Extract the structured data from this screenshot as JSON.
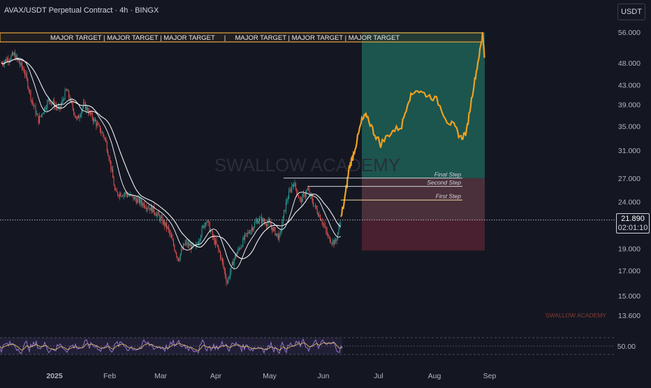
{
  "header": {
    "title": "AVAX/USDT Perpetual Contract · 4h · BINGX",
    "currency_button": "USDT"
  },
  "watermark": {
    "center": "SWALLOW ACADEMY",
    "corner": "SWALLOW ACADEMY"
  },
  "banner": {
    "text": "MAJOR TARGET | MAJOR TARGET | MAJOR TARGET     |     MAJOR TARGET | MAJOR TARGET | MAJOR TARGET"
  },
  "steps": [
    {
      "label": "Final Step",
      "price": 27.0
    },
    {
      "label": "Second Step",
      "price": 25.9
    },
    {
      "label": "First Step",
      "price": 24.2
    }
  ],
  "current_price": {
    "value": "21.890",
    "countdown": "02:01:10"
  },
  "price_axis": {
    "ticks": [
      "56.000",
      "48.000",
      "43.000",
      "39.000",
      "35.000",
      "31.000",
      "27.000",
      "24.000",
      "19.000",
      "17.000",
      "15.000",
      "13.600"
    ],
    "rsi_tick": "50.00"
  },
  "time_axis": {
    "labels": [
      "2025",
      "Feb",
      "Mar",
      "Apr",
      "May",
      "Jun",
      "Jul",
      "Aug",
      "Sep"
    ]
  },
  "colors": {
    "background": "#141722",
    "bull": "#26a69a",
    "bear": "#ef5350",
    "target_zone": "#1e6b5d",
    "stop_zone": "#5b2434",
    "projection": "#f0a020",
    "banner_border": "#e8a33a",
    "rsi": "#9575cd"
  },
  "chart_data": {
    "type": "line",
    "title": "AVAX/USDT Perpetual Contract · 4h · BINGX",
    "xlabel": "",
    "ylabel": "",
    "x": [
      "2025",
      "Feb",
      "Mar",
      "Apr",
      "May",
      "Jun",
      "Jul",
      "Aug",
      "Sep"
    ],
    "series": [
      {
        "name": "",
        "values": [
          40.0,
          35.0,
          25.0,
          18.5,
          21.5,
          20.0,
          35.0,
          40.0,
          54.0
        ]
      }
    ],
    "ylim": [
      13.6,
      56.0
    ],
    "target_zone": [
      21.9,
      56.0
    ],
    "stop_zone": [
      18.8,
      27.0
    ],
    "annotations": [
      "MAJOR TARGET",
      "Final Step",
      "Second Step",
      "First Step"
    ],
    "grid": false,
    "legend": "none"
  }
}
